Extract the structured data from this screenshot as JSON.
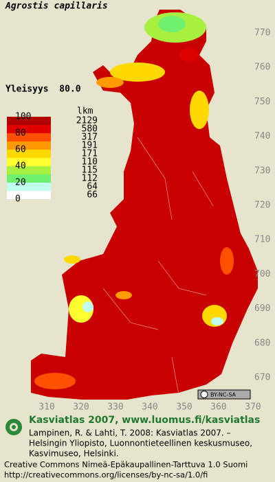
{
  "title": "Agrostis capillaris",
  "frequency_text": "Yleisyys  80.0",
  "legend": {
    "scale_labels": [
      100,
      80,
      60,
      40,
      20,
      0
    ],
    "count_header": "lkm",
    "counts": [
      2129,
      580,
      317,
      191,
      171,
      110,
      115,
      112,
      64,
      66
    ],
    "colors": [
      "#b00000",
      "#e00000",
      "#ff5000",
      "#ff9a00",
      "#ffd800",
      "#ffff30",
      "#a8f040",
      "#70f070",
      "#c0fff0",
      "#ffffff"
    ]
  },
  "y_labels": [
    770,
    760,
    750,
    740,
    730,
    720,
    710,
    700,
    690,
    680,
    670
  ],
  "x_labels": [
    310,
    320,
    330,
    340,
    350,
    360,
    370
  ],
  "license_badge": "BY-NC-SA",
  "footer": {
    "heading": "Kasviatlas 2007, www.luomus.fi/kasviatlas",
    "citation": [
      "Lampinen, R. & Lahti, T. 2008: Kasviatlas 2007. –",
      "Helsingin Yliopisto, Luonnontieteellinen keskusmuseo,",
      "Kasvimuseo, Helsinki."
    ],
    "license": [
      "Creative Commons Nimeä-Epäkaupallinen-Tarttuva 1.0 Suomi",
      "http://creativecommons.org/licenses/by-nc-sa/1.0/fi"
    ]
  }
}
